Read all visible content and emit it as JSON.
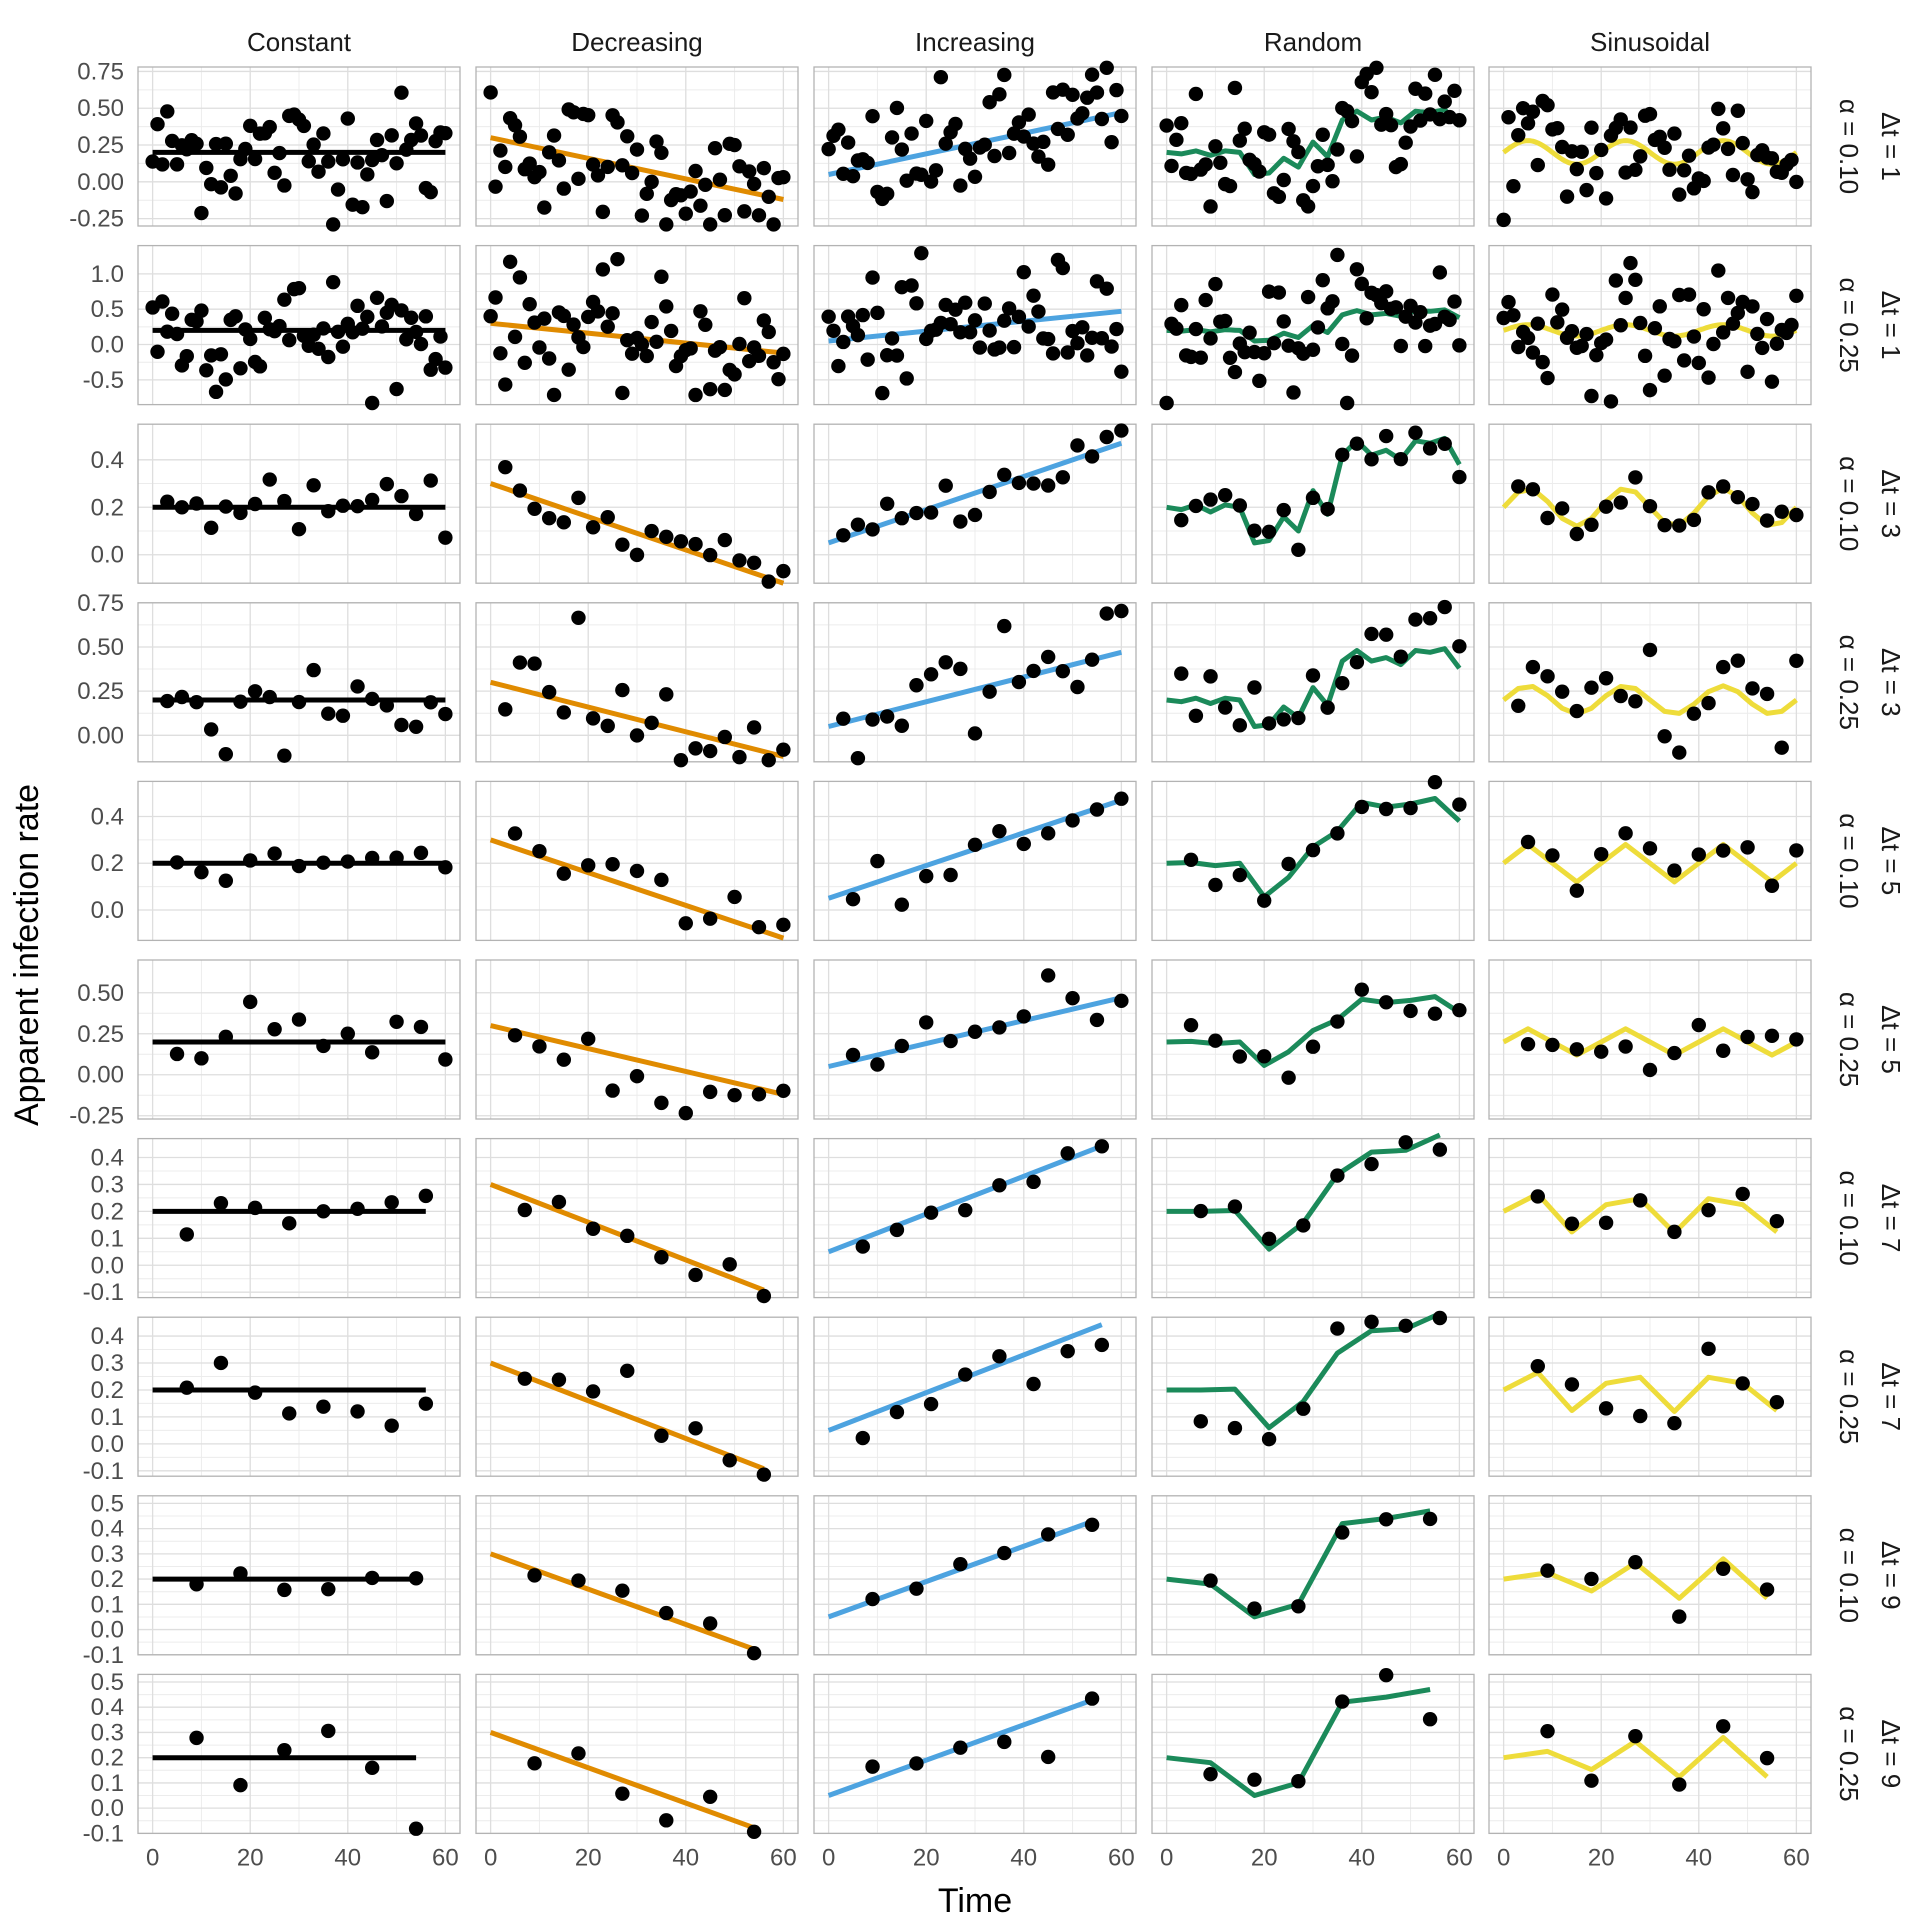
{
  "chart_data": {
    "type": "faceted-scatter-line",
    "xlabel": "Time",
    "ylabel": "Apparent infection rate",
    "xlim": [
      -3,
      63
    ],
    "x_ticks": [
      0,
      20,
      40,
      60
    ],
    "grid": true,
    "columns": [
      "Constant",
      "Decreasing",
      "Increasing",
      "Random",
      "Sinusoidal"
    ],
    "row_labels": [
      {
        "alpha": "α = 0.10",
        "dt": "Δt = 1"
      },
      {
        "alpha": "α = 0.25",
        "dt": "Δt = 1"
      },
      {
        "alpha": "α = 0.10",
        "dt": "Δt = 3"
      },
      {
        "alpha": "α = 0.25",
        "dt": "Δt = 3"
      },
      {
        "alpha": "α = 0.10",
        "dt": "Δt = 5"
      },
      {
        "alpha": "α = 0.25",
        "dt": "Δt = 5"
      },
      {
        "alpha": "α = 0.10",
        "dt": "Δt = 7"
      },
      {
        "alpha": "α = 0.25",
        "dt": "Δt = 7"
      },
      {
        "alpha": "α = 0.10",
        "dt": "Δt = 9"
      },
      {
        "alpha": "α = 0.25",
        "dt": "Δt = 9"
      }
    ],
    "rows": [
      {
        "ylim": [
          -0.3,
          0.78
        ],
        "y_ticks": [
          0.75,
          0.5,
          0.25,
          0.0,
          -0.25
        ],
        "y_tick_labels": [
          "0.75",
          "0.50",
          "0.25",
          "0.00",
          "-0.25"
        ]
      },
      {
        "ylim": [
          -0.85,
          1.4
        ],
        "y_ticks": [
          1.0,
          0.5,
          0.0,
          -0.5
        ],
        "y_tick_labels": [
          "1.0",
          "0.5",
          "0.0",
          "-0.5"
        ]
      },
      {
        "ylim": [
          -0.12,
          0.55
        ],
        "y_ticks": [
          0.4,
          0.2,
          0.0
        ],
        "y_tick_labels": [
          "0.4",
          "0.2",
          "0.0"
        ]
      },
      {
        "ylim": [
          -0.15,
          0.75
        ],
        "y_ticks": [
          0.75,
          0.5,
          0.25,
          0.0
        ],
        "y_tick_labels": [
          "0.75",
          "0.50",
          "0.25",
          "0.00"
        ]
      },
      {
        "ylim": [
          -0.13,
          0.55
        ],
        "y_ticks": [
          0.4,
          0.2,
          0.0
        ],
        "y_tick_labels": [
          "0.4",
          "0.2",
          "0.0"
        ]
      },
      {
        "ylim": [
          -0.27,
          0.7
        ],
        "y_ticks": [
          0.5,
          0.25,
          0.0,
          -0.25
        ],
        "y_tick_labels": [
          "0.50",
          "0.25",
          "0.00",
          "-0.25"
        ]
      },
      {
        "ylim": [
          -0.12,
          0.47
        ],
        "y_ticks": [
          0.4,
          0.3,
          0.2,
          0.1,
          0.0,
          -0.1
        ],
        "y_tick_labels": [
          "0.4",
          "0.3",
          "0.2",
          "0.1",
          "0.0",
          "-0.1"
        ]
      },
      {
        "ylim": [
          -0.12,
          0.47
        ],
        "y_ticks": [
          0.4,
          0.3,
          0.2,
          0.1,
          0.0,
          -0.1
        ],
        "y_tick_labels": [
          "0.4",
          "0.3",
          "0.2",
          "0.1",
          "0.0",
          "-0.1"
        ]
      },
      {
        "ylim": [
          -0.1,
          0.53
        ],
        "y_ticks": [
          0.5,
          0.4,
          0.3,
          0.2,
          0.1,
          0.0,
          -0.1
        ],
        "y_tick_labels": [
          "0.5",
          "0.4",
          "0.3",
          "0.2",
          "0.1",
          "0.0",
          "-0.1"
        ]
      },
      {
        "ylim": [
          -0.1,
          0.53
        ],
        "y_ticks": [
          0.5,
          0.4,
          0.3,
          0.2,
          0.1,
          0.0,
          -0.1
        ],
        "y_tick_labels": [
          "0.5",
          "0.4",
          "0.3",
          "0.2",
          "0.1",
          "0.0",
          "-0.1"
        ]
      }
    ],
    "trend_colors": {
      "Constant": "#000000",
      "Decreasing": "#E08B00",
      "Increasing": "#4DA3E0",
      "Random": "#1B8A5A",
      "Sinusoidal": "#EEDC3A"
    },
    "point_color": "#000000",
    "random_trend": {
      "x": [
        0,
        3,
        6,
        9,
        12,
        15,
        18,
        21,
        24,
        27,
        30,
        33,
        36,
        39,
        42,
        45,
        48,
        51,
        54,
        57,
        60
      ],
      "y": [
        0.2,
        0.19,
        0.21,
        0.18,
        0.21,
        0.2,
        0.05,
        0.06,
        0.16,
        0.1,
        0.27,
        0.17,
        0.42,
        0.48,
        0.42,
        0.44,
        0.4,
        0.48,
        0.47,
        0.49,
        0.38
      ]
    },
    "sinusoidal_trend": {
      "mean": 0.2,
      "amplitude": 0.08,
      "period": 20,
      "phase": 0
    },
    "constant_trend": {
      "value": 0.2
    },
    "decreasing_trend": {
      "start": 0.3,
      "slope": -0.007
    },
    "increasing_trend": {
      "start": 0.05,
      "slope": 0.007
    },
    "noise_sd_by_row": [
      0.2,
      0.4,
      0.05,
      0.15,
      0.05,
      0.1,
      0.03,
      0.07,
      0.03,
      0.07
    ]
  }
}
